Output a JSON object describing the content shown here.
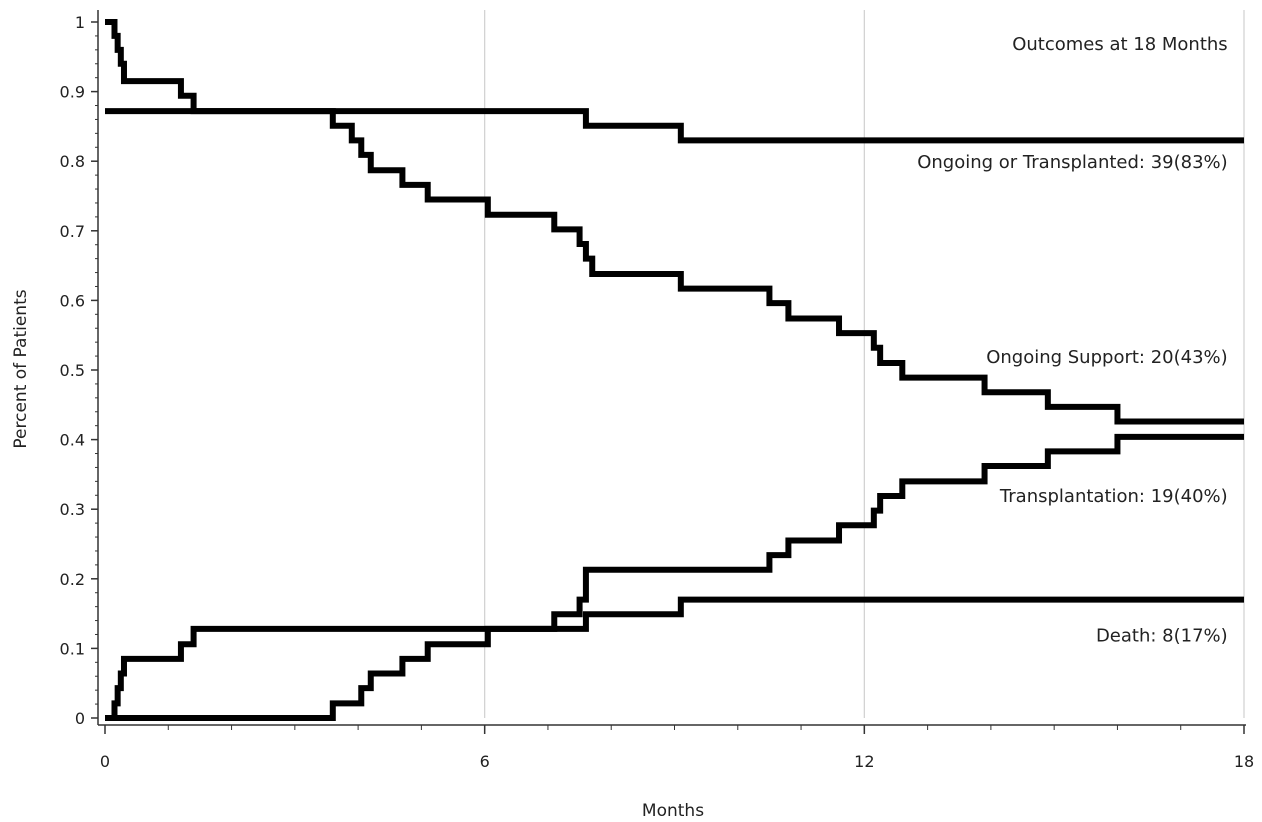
{
  "chart_data": {
    "type": "line",
    "step": true,
    "xlabel": "Months",
    "ylabel": "Percent of Patients",
    "xlim": [
      0,
      18
    ],
    "ylim": [
      0,
      1
    ],
    "x_ticks": [
      0,
      6,
      12,
      18
    ],
    "x_tick_labels": [
      "0",
      "6",
      "12",
      "18"
    ],
    "x_minor_step": 1,
    "y_ticks": [
      0,
      0.1,
      0.2,
      0.3,
      0.4,
      0.5,
      0.6,
      0.7,
      0.8,
      0.9,
      1
    ],
    "y_tick_labels": [
      "0",
      "0.1",
      "0.2",
      "0.3",
      "0.4",
      "0.5",
      "0.6",
      "0.7",
      "0.8",
      "0.9",
      "1"
    ],
    "grid": "vertical at major x ticks",
    "line_color": "#000000",
    "grid_color": "#d0d0d0",
    "annotations": [
      {
        "text": "Outcomes at 18 Months",
        "x": 17.9,
        "y": 0.96
      },
      {
        "text": "Ongoing or Transplanted: 39(83%)",
        "x": 17.9,
        "y": 0.79
      },
      {
        "text": "Ongoing Support: 20(43%)",
        "x": 17.9,
        "y": 0.51
      },
      {
        "text": "Transplantation: 19(40%)",
        "x": 17.9,
        "y": 0.31
      },
      {
        "text": "Death: 8(17%)",
        "x": 17.9,
        "y": 0.11
      }
    ],
    "series": [
      {
        "x": [
          0,
          0.15,
          0.2,
          0.25,
          0.3,
          1.2,
          1.4,
          7.6,
          9.1,
          18
        ],
        "y": [
          1,
          0.98,
          0.96,
          0.94,
          0.915,
          0.894,
          0.872,
          0.851,
          0.83,
          0.83
        ]
      },
      {
        "x": [
          0,
          3.6,
          3.9,
          4.05,
          4.2,
          4.7,
          5.1,
          6.05,
          7.1,
          7.5,
          7.6,
          7.7,
          9.1,
          10.5,
          10.8,
          11.6,
          12.15,
          12.25,
          12.6,
          13.9,
          14.9,
          16.0,
          18
        ],
        "y": [
          0.872,
          0.851,
          0.83,
          0.809,
          0.787,
          0.766,
          0.745,
          0.723,
          0.702,
          0.681,
          0.66,
          0.638,
          0.617,
          0.596,
          0.574,
          0.553,
          0.532,
          0.51,
          0.489,
          0.468,
          0.447,
          0.426,
          0.426
        ]
      },
      {
        "x": [
          0,
          3.6,
          4.05,
          4.2,
          4.7,
          5.1,
          6.05,
          7.1,
          7.5,
          7.6,
          10.5,
          10.8,
          11.6,
          12.15,
          12.25,
          12.6,
          13.9,
          14.9,
          16.0,
          18
        ],
        "y": [
          0,
          0.021,
          0.043,
          0.064,
          0.085,
          0.106,
          0.128,
          0.149,
          0.17,
          0.213,
          0.234,
          0.255,
          0.277,
          0.298,
          0.319,
          0.34,
          0.362,
          0.383,
          0.404,
          0.404
        ]
      },
      {
        "x": [
          0,
          0.15,
          0.2,
          0.25,
          0.3,
          1.2,
          1.4,
          7.6,
          9.1,
          18
        ],
        "y": [
          0,
          0.021,
          0.043,
          0.064,
          0.085,
          0.106,
          0.128,
          0.149,
          0.17,
          0.17
        ]
      }
    ]
  }
}
